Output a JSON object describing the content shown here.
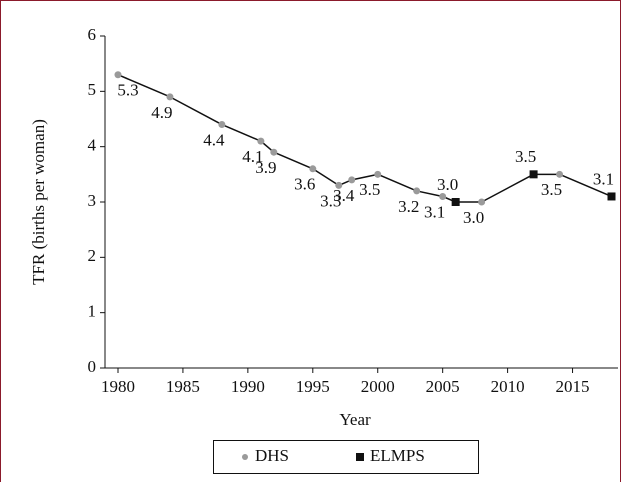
{
  "chart_data": {
    "type": "line",
    "xlabel": "Year",
    "ylabel": "TFR (births per woman)",
    "xlim": [
      1979,
      2018.5
    ],
    "xticks": [
      1980,
      1985,
      1990,
      1995,
      2000,
      2005,
      2010,
      2015
    ],
    "ylim": [
      0,
      6
    ],
    "yticks": [
      0,
      1,
      2,
      3,
      4,
      5,
      6
    ],
    "legend": "bottom",
    "series": [
      {
        "name": "DHS",
        "color": "#9a9a9a",
        "marker": "circle",
        "x": [
          1980,
          1984,
          1988,
          1991,
          1992,
          1995,
          1997,
          1998,
          2000,
          2003,
          2005,
          2008,
          2014
        ],
        "values": [
          5.3,
          4.9,
          4.4,
          4.1,
          3.9,
          3.6,
          3.3,
          3.4,
          3.5,
          3.2,
          3.1,
          3.0,
          3.5
        ],
        "value_labels": [
          "5.3",
          "4.9",
          "4.4",
          "4.1",
          "3.9",
          "3.6",
          "3.3",
          "3.4",
          "3.5",
          "3.2",
          "3.1",
          "3.0",
          "3.5"
        ]
      },
      {
        "name": "ELMPS",
        "color": "#111111",
        "marker": "square",
        "x": [
          2006,
          2012,
          2018
        ],
        "values": [
          3.0,
          3.5,
          3.1
        ],
        "value_labels": [
          "3.0",
          "3.5",
          "3.1"
        ]
      }
    ]
  }
}
